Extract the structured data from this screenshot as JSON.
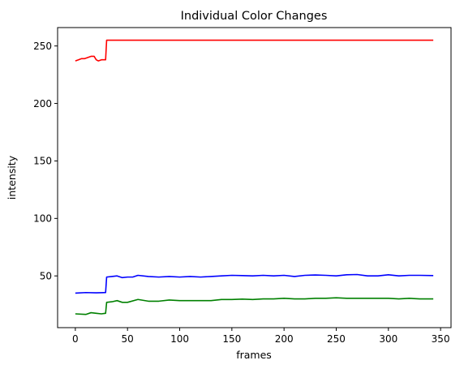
{
  "chart_data": {
    "type": "line",
    "title": "Individual Color Changes",
    "xlabel": "frames",
    "ylabel": "intensity",
    "xlim": [
      -17,
      360
    ],
    "ylim": [
      5,
      266
    ],
    "x_ticks": [
      0,
      50,
      100,
      150,
      200,
      250,
      300,
      350
    ],
    "y_ticks": [
      50,
      100,
      150,
      200,
      250
    ],
    "grid": false,
    "legend": "none",
    "series": [
      {
        "color": "#ff0000",
        "points": [
          [
            0,
            237
          ],
          [
            3,
            238
          ],
          [
            6,
            239
          ],
          [
            9,
            239
          ],
          [
            12,
            240
          ],
          [
            15,
            241
          ],
          [
            18,
            241
          ],
          [
            20,
            238
          ],
          [
            22,
            237
          ],
          [
            25,
            238
          ],
          [
            29,
            238
          ],
          [
            30,
            255
          ],
          [
            343,
            255
          ]
        ]
      },
      {
        "color": "#0000ff",
        "points": [
          [
            0,
            35
          ],
          [
            10,
            35.5
          ],
          [
            20,
            35.3
          ],
          [
            29,
            35.5
          ],
          [
            30,
            49
          ],
          [
            35,
            49.5
          ],
          [
            40,
            50
          ],
          [
            45,
            48.5
          ],
          [
            50,
            49
          ],
          [
            55,
            49
          ],
          [
            60,
            50.5
          ],
          [
            70,
            49.5
          ],
          [
            80,
            49
          ],
          [
            90,
            49.5
          ],
          [
            100,
            49
          ],
          [
            110,
            49.5
          ],
          [
            120,
            49
          ],
          [
            130,
            49.5
          ],
          [
            140,
            50
          ],
          [
            150,
            50.5
          ],
          [
            160,
            50.3
          ],
          [
            170,
            50
          ],
          [
            180,
            50.5
          ],
          [
            190,
            50
          ],
          [
            200,
            50.5
          ],
          [
            210,
            49.5
          ],
          [
            220,
            50.5
          ],
          [
            230,
            50.8
          ],
          [
            240,
            50.5
          ],
          [
            250,
            50
          ],
          [
            260,
            51
          ],
          [
            270,
            51.2
          ],
          [
            280,
            50
          ],
          [
            290,
            50
          ],
          [
            300,
            51
          ],
          [
            310,
            50
          ],
          [
            320,
            50.5
          ],
          [
            330,
            50.5
          ],
          [
            343,
            50.3
          ]
        ]
      },
      {
        "color": "#008000",
        "points": [
          [
            0,
            17
          ],
          [
            10,
            16.5
          ],
          [
            15,
            18
          ],
          [
            20,
            17.5
          ],
          [
            25,
            17
          ],
          [
            29,
            17.5
          ],
          [
            30,
            27
          ],
          [
            35,
            27.5
          ],
          [
            40,
            28.5
          ],
          [
            45,
            27
          ],
          [
            50,
            27
          ],
          [
            60,
            29.5
          ],
          [
            70,
            28
          ],
          [
            80,
            28
          ],
          [
            90,
            29
          ],
          [
            100,
            28.5
          ],
          [
            110,
            28.5
          ],
          [
            120,
            28.5
          ],
          [
            130,
            28.5
          ],
          [
            140,
            29.5
          ],
          [
            150,
            29.5
          ],
          [
            160,
            29.8
          ],
          [
            170,
            29.5
          ],
          [
            180,
            30
          ],
          [
            190,
            30
          ],
          [
            200,
            30.5
          ],
          [
            210,
            30
          ],
          [
            220,
            30
          ],
          [
            230,
            30.5
          ],
          [
            240,
            30.5
          ],
          [
            250,
            31
          ],
          [
            260,
            30.5
          ],
          [
            270,
            30.5
          ],
          [
            280,
            30.5
          ],
          [
            290,
            30.5
          ],
          [
            300,
            30.5
          ],
          [
            310,
            30
          ],
          [
            320,
            30.5
          ],
          [
            330,
            30
          ],
          [
            343,
            30
          ]
        ]
      }
    ]
  }
}
